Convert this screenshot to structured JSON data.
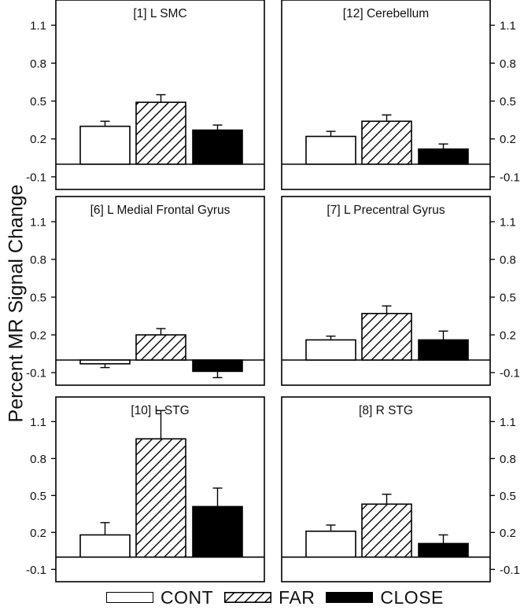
{
  "figure": {
    "ylabel": "Percent MR Signal Change"
  },
  "legend": {
    "items": [
      {
        "label": "CONT",
        "pattern": "white"
      },
      {
        "label": "FAR",
        "pattern": "hatch"
      },
      {
        "label": "CLOSE",
        "pattern": "black"
      }
    ]
  },
  "chart_data": [
    {
      "type": "bar",
      "title": "[1] L SMC",
      "categories": [
        "CONT",
        "FAR",
        "CLOSE"
      ],
      "values": [
        0.3,
        0.49,
        0.27
      ],
      "errors": [
        0.04,
        0.06,
        0.04
      ],
      "ylim": [
        -0.2,
        1.3
      ],
      "baseline": 0.0,
      "yticks": [
        "-0.1",
        "0.2",
        "0.5",
        "0.8",
        "1.1"
      ],
      "ytick_side": "left"
    },
    {
      "type": "bar",
      "title": "[12] Cerebellum",
      "categories": [
        "CONT",
        "FAR",
        "CLOSE"
      ],
      "values": [
        0.22,
        0.34,
        0.12
      ],
      "errors": [
        0.04,
        0.05,
        0.04
      ],
      "ylim": [
        -0.2,
        1.3
      ],
      "baseline": 0.0,
      "yticks": [
        "-0.1",
        "0.2",
        "0.5",
        "0.8",
        "1.1"
      ],
      "ytick_side": "right"
    },
    {
      "type": "bar",
      "title": "[6] L Medial Frontal Gyrus",
      "categories": [
        "CONT",
        "FAR",
        "CLOSE"
      ],
      "values": [
        -0.03,
        0.2,
        -0.09
      ],
      "errors": [
        0.03,
        0.05,
        0.05
      ],
      "ylim": [
        -0.2,
        1.3
      ],
      "baseline": 0.0,
      "yticks": [
        "-0.1",
        "0.2",
        "0.5",
        "0.8",
        "1.1"
      ],
      "ytick_side": "left"
    },
    {
      "type": "bar",
      "title": "[7] L Precentral Gyrus",
      "categories": [
        "CONT",
        "FAR",
        "CLOSE"
      ],
      "values": [
        0.16,
        0.37,
        0.16
      ],
      "errors": [
        0.03,
        0.06,
        0.07
      ],
      "ylim": [
        -0.2,
        1.3
      ],
      "baseline": 0.0,
      "yticks": [
        "-0.1",
        "0.2",
        "0.5",
        "0.8",
        "1.1"
      ],
      "ytick_side": "right"
    },
    {
      "type": "bar",
      "title": "[10] L STG",
      "categories": [
        "CONT",
        "FAR",
        "CLOSE"
      ],
      "values": [
        0.18,
        0.96,
        0.41
      ],
      "errors": [
        0.1,
        0.23,
        0.15
      ],
      "ylim": [
        -0.2,
        1.3
      ],
      "baseline": 0.0,
      "yticks": [
        "-0.1",
        "0.2",
        "0.5",
        "0.8",
        "1.1"
      ],
      "ytick_side": "left"
    },
    {
      "type": "bar",
      "title": "[8] R STG",
      "categories": [
        "CONT",
        "FAR",
        "CLOSE"
      ],
      "values": [
        0.21,
        0.43,
        0.11
      ],
      "errors": [
        0.05,
        0.08,
        0.07
      ],
      "ylim": [
        -0.2,
        1.3
      ],
      "baseline": 0.0,
      "yticks": [
        "-0.1",
        "0.2",
        "0.5",
        "0.8",
        "1.1"
      ],
      "ytick_side": "right"
    }
  ]
}
